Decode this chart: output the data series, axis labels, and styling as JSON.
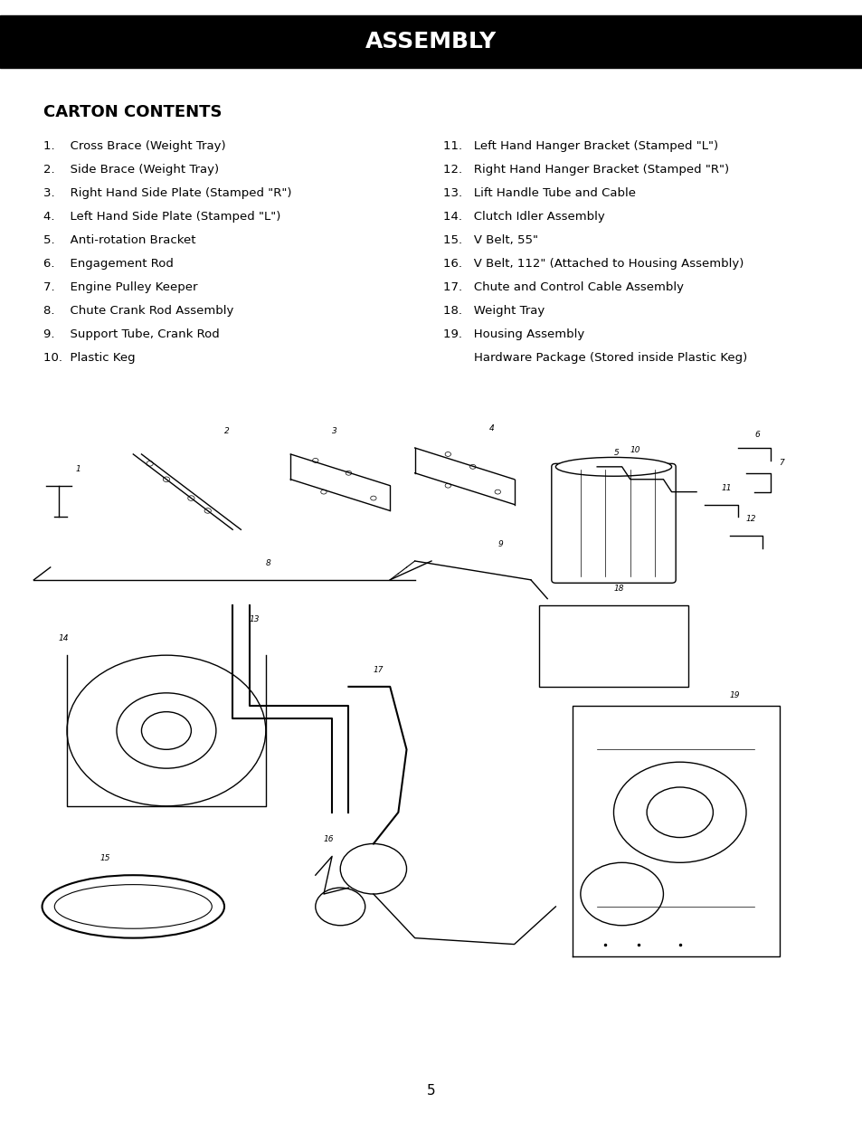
{
  "title": "ASSEMBLY",
  "section_title": "CARTON CONTENTS",
  "left_items": [
    "1.    Cross Brace (Weight Tray)",
    "2.    Side Brace (Weight Tray)",
    "3.    Right Hand Side Plate (Stamped \"R\")",
    "4.    Left Hand Side Plate (Stamped \"L\")",
    "5.    Anti-rotation Bracket",
    "6.    Engagement Rod",
    "7.    Engine Pulley Keeper",
    "8.    Chute Crank Rod Assembly",
    "9.    Support Tube, Crank Rod",
    "10.  Plastic Keg"
  ],
  "right_items": [
    "11.   Left Hand Hanger Bracket (Stamped \"L\")",
    "12.   Right Hand Hanger Bracket (Stamped \"R\")",
    "13.   Lift Handle Tube and Cable",
    "14.   Clutch Idler Assembly",
    "15.   V Belt, 55\"",
    "16.   V Belt, 112\" (Attached to Housing Assembly)",
    "17.   Chute and Control Cable Assembly",
    "18.   Weight Tray",
    "19.   Housing Assembly",
    "        Hardware Package (Stored inside Plastic Keg)"
  ],
  "page_number": "5",
  "header_bg": "#000000",
  "header_text_color": "#ffffff",
  "body_bg": "#ffffff",
  "text_color": "#000000"
}
